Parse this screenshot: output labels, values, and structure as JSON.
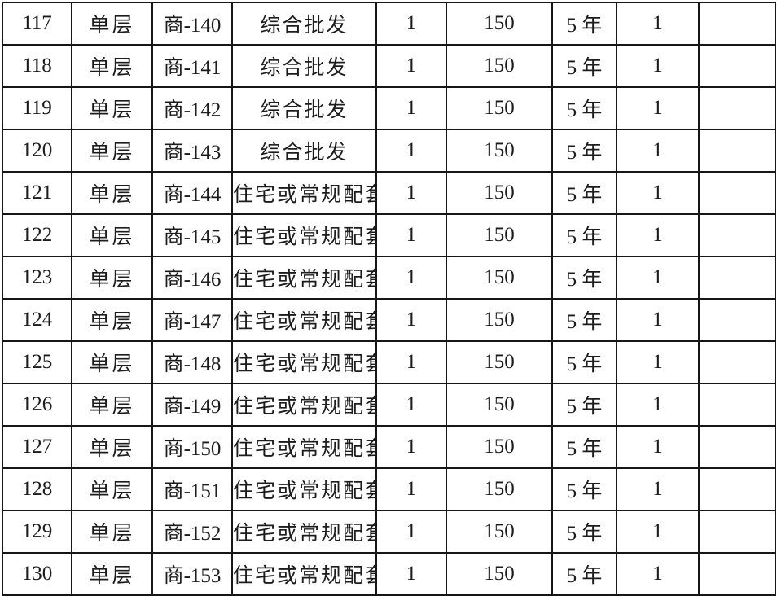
{
  "colors": {
    "background": "#ffffff",
    "text": "#1c1c1c",
    "border": "#161616",
    "red": "#e02b2b"
  },
  "table": {
    "columns": [
      {
        "key": "no"
      },
      {
        "key": "floor"
      },
      {
        "key": "unit"
      },
      {
        "key": "usage"
      },
      {
        "key": "qty"
      },
      {
        "key": "area"
      },
      {
        "key": "term"
      },
      {
        "key": "count"
      },
      {
        "key": "blank"
      }
    ],
    "rows": [
      [
        "117",
        "单层",
        "商-140",
        "综合批发",
        "1",
        "150",
        "5 年",
        "1",
        ""
      ],
      [
        "118",
        "单层",
        "商-141",
        "综合批发",
        "1",
        "150",
        "5 年",
        "1",
        ""
      ],
      [
        "119",
        "单层",
        "商-142",
        "综合批发",
        "1",
        "150",
        "5 年",
        "1",
        ""
      ],
      [
        "120",
        "单层",
        "商-143",
        "综合批发",
        "1",
        "150",
        "5 年",
        "1",
        ""
      ],
      [
        "121",
        "单层",
        "商-144",
        "住宅或常规配套",
        "1",
        "150",
        "5 年",
        "1",
        ""
      ],
      [
        "122",
        "单层",
        "商-145",
        "住宅或常规配套",
        "1",
        "150",
        "5 年",
        "1",
        ""
      ],
      [
        "123",
        "单层",
        "商-146",
        "住宅或常规配套",
        "1",
        "150",
        "5 年",
        "1",
        ""
      ],
      [
        "124",
        "单层",
        "商-147",
        "住宅或常规配套",
        "1",
        "150",
        "5 年",
        "1",
        ""
      ],
      [
        "125",
        "单层",
        "商-148",
        "住宅或常规配套",
        "1",
        "150",
        "5 年",
        "1",
        ""
      ],
      [
        "126",
        "单层",
        "商-149",
        "住宅或常规配套",
        "1",
        "150",
        "5 年",
        "1",
        ""
      ],
      [
        "127",
        "单层",
        "商-150",
        "住宅或常规配套",
        "1",
        "150",
        "5 年",
        "1",
        ""
      ],
      [
        "128",
        "单层",
        "商-151",
        "住宅或常规配套",
        "1",
        "150",
        "5 年",
        "1",
        ""
      ],
      [
        "129",
        "单层",
        "商-152",
        "住宅或常规配套",
        "1",
        "150",
        "5 年",
        "1",
        ""
      ],
      [
        "130",
        "单层",
        "商-153",
        "住宅或常规配套",
        "1",
        "150",
        "5 年",
        "1",
        ""
      ]
    ]
  }
}
